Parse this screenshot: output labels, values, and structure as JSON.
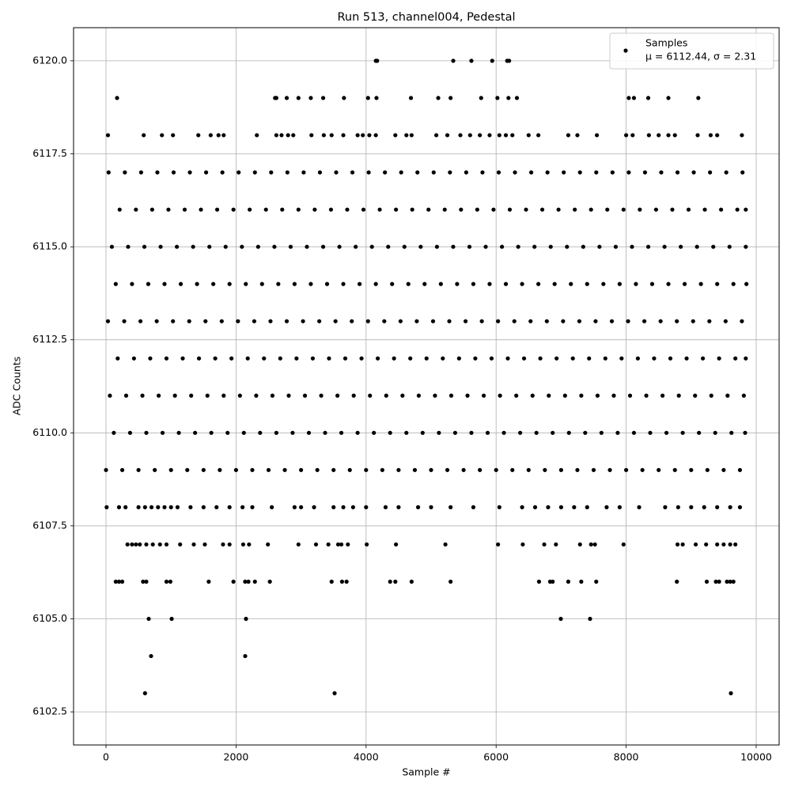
{
  "chart_data": {
    "type": "scatter",
    "title": "Run 513, channel004, Pedestal",
    "x_label": "Sample #",
    "y_label": "ADC Counts",
    "xlim": [
      -499,
      10353
    ],
    "ylim": [
      6101.61,
      6120.89
    ],
    "xticks": [
      0,
      2000,
      4000,
      6000,
      8000,
      10000
    ],
    "yticks": [
      6102.5,
      {
        "value": 6105,
        "label": "6105.0"
      },
      6107.5,
      {
        "value": 6110,
        "label": "6110.0"
      },
      6112.5,
      {
        "value": 6115,
        "label": "6115.0"
      },
      6117.5,
      {
        "value": 6120,
        "label": "6120.0"
      }
    ],
    "grid": true,
    "legend": "upper right",
    "legend_note": "μ = 6112.44, σ = 2.31",
    "series": [
      {
        "name": "Samples",
        "color": "#000000",
        "x": [
          600,
          3516,
          9611,
          693,
          2141,
          657,
          1010,
          2153,
          6995,
          7445,
          4150,
          4170,
          5341,
          5620,
          5940,
          6170,
          6200,
          170,
          2600,
          2620,
          2780,
          2960,
          3150,
          3340,
          3660,
          4030,
          4160,
          4690,
          5110,
          5300,
          5770,
          6020,
          6190,
          6320,
          8040,
          8120,
          8340,
          8650,
          9110,
          150,
          200,
          250,
          570,
          620,
          930,
          990,
          1580,
          1960,
          2140,
          2190,
          2290,
          2520,
          3470,
          3630,
          3700,
          4370,
          4450,
          4700,
          5300,
          6660,
          6830,
          6870,
          7110,
          7310,
          7540,
          8780,
          9240,
          9380,
          9430,
          9550,
          9600,
          9650,
          330,
          400,
          460,
          520,
          620,
          720,
          830,
          930,
          1140,
          1350,
          1520,
          1800,
          1900,
          2110,
          2200,
          2490,
          2960,
          3230,
          3420,
          3570,
          3620,
          3720,
          4010,
          4460,
          5220,
          6030,
          6410,
          6740,
          6920,
          7290,
          7460,
          7520,
          7960,
          8790,
          8870,
          9070,
          9230,
          9400,
          9500,
          9600,
          9680,
          30,
          580,
          860,
          1030,
          1420,
          1610,
          1730,
          1810,
          2320,
          2620,
          2700,
          2800,
          2880,
          3160,
          3350,
          3470,
          3650,
          3870,
          3950,
          4050,
          4150,
          4450,
          4620,
          4700,
          5080,
          5250,
          5450,
          5600,
          5750,
          5900,
          6050,
          6150,
          6250,
          6500,
          6650,
          7110,
          7250,
          7550,
          8000,
          8100,
          8350,
          8500,
          8650,
          8750,
          9100,
          9300,
          9400,
          9780,
          10,
          200,
          300,
          500,
          600,
          700,
          800,
          900,
          1000,
          1100,
          1300,
          1500,
          1700,
          1900,
          2100,
          2250,
          2550,
          2900,
          3000,
          3200,
          3500,
          3650,
          3800,
          4000,
          4300,
          4500,
          4800,
          5000,
          5300,
          5650,
          6050,
          6400,
          6600,
          6800,
          7000,
          7200,
          7400,
          7700,
          7900,
          8200,
          8600,
          8800,
          9000,
          9200,
          9400,
          9600,
          9750,
          0,
          250,
          500,
          750,
          1000,
          1250,
          1500,
          1750,
          2000,
          2250,
          2500,
          2750,
          3000,
          3250,
          3500,
          3750,
          4000,
          4250,
          4500,
          4750,
          5000,
          5250,
          5500,
          5750,
          6000,
          6250,
          6500,
          6750,
          7000,
          7250,
          7500,
          7750,
          8000,
          8250,
          8500,
          8750,
          9000,
          9250,
          9500,
          9750,
          120,
          370,
          620,
          870,
          1120,
          1370,
          1620,
          1870,
          2120,
          2370,
          2620,
          2870,
          3120,
          3370,
          3620,
          3870,
          4120,
          4370,
          4620,
          4870,
          5120,
          5370,
          5620,
          5870,
          6120,
          6370,
          6620,
          6870,
          7120,
          7370,
          7620,
          7870,
          8120,
          8370,
          8620,
          8870,
          9120,
          9370,
          9620,
          9830,
          60,
          310,
          560,
          810,
          1060,
          1310,
          1560,
          1810,
          2060,
          2310,
          2560,
          2810,
          3060,
          3310,
          3560,
          3810,
          4060,
          4310,
          4560,
          4810,
          5060,
          5310,
          5560,
          5810,
          6060,
          6310,
          6560,
          6810,
          7060,
          7310,
          7560,
          7810,
          8060,
          8310,
          8560,
          8810,
          9060,
          9310,
          9560,
          9810,
          180,
          430,
          680,
          930,
          1180,
          1430,
          1680,
          1930,
          2180,
          2430,
          2680,
          2930,
          3180,
          3430,
          3680,
          3930,
          4180,
          4430,
          4680,
          4930,
          5180,
          5430,
          5680,
          5930,
          6180,
          6430,
          6680,
          6930,
          7180,
          7430,
          7680,
          7930,
          8180,
          8430,
          8680,
          8930,
          9180,
          9430,
          9680,
          9840,
          30,
          280,
          530,
          780,
          1030,
          1280,
          1530,
          1780,
          2030,
          2280,
          2530,
          2780,
          3030,
          3280,
          3530,
          3780,
          4030,
          4280,
          4530,
          4780,
          5030,
          5280,
          5530,
          5780,
          6030,
          6280,
          6530,
          6780,
          7030,
          7280,
          7530,
          7780,
          8030,
          8280,
          8530,
          8780,
          9030,
          9280,
          9530,
          9780,
          150,
          400,
          650,
          900,
          1150,
          1400,
          1650,
          1900,
          2150,
          2400,
          2650,
          2900,
          3150,
          3400,
          3650,
          3900,
          4150,
          4400,
          4650,
          4900,
          5150,
          5400,
          5650,
          5900,
          6150,
          6400,
          6650,
          6900,
          7150,
          7400,
          7650,
          7900,
          8150,
          8400,
          8650,
          8900,
          9150,
          9400,
          9650,
          9850,
          90,
          340,
          590,
          840,
          1090,
          1340,
          1590,
          1840,
          2090,
          2340,
          2590,
          2840,
          3090,
          3340,
          3590,
          3840,
          4090,
          4340,
          4590,
          4840,
          5090,
          5340,
          5590,
          5840,
          6090,
          6340,
          6590,
          6840,
          7090,
          7340,
          7590,
          7840,
          8090,
          8340,
          8590,
          8840,
          9090,
          9340,
          9590,
          9840,
          210,
          460,
          710,
          960,
          1210,
          1460,
          1710,
          1960,
          2210,
          2460,
          2710,
          2960,
          3210,
          3460,
          3710,
          3960,
          4210,
          4460,
          4710,
          4960,
          5210,
          5460,
          5710,
          5960,
          6210,
          6460,
          6710,
          6960,
          7210,
          7460,
          7710,
          7960,
          8210,
          8460,
          8710,
          8960,
          9210,
          9460,
          9710,
          9840,
          40,
          290,
          540,
          790,
          1040,
          1290,
          1540,
          1790,
          2040,
          2290,
          2540,
          2790,
          3040,
          3290,
          3540,
          3790,
          4040,
          4290,
          4540,
          4790,
          5040,
          5290,
          5540,
          5790,
          6040,
          6290,
          6540,
          6790,
          7040,
          7290,
          7540,
          7790,
          8040,
          8290,
          8540,
          8790,
          9040,
          9290,
          9540,
          9790
        ],
        "values": [
          6103,
          6103,
          6103,
          6104,
          6104,
          6105,
          6105,
          6105,
          6105,
          6105,
          6120,
          6120,
          6120,
          6120,
          6120,
          6120,
          6120,
          6119,
          6119,
          6119,
          6119,
          6119,
          6119,
          6119,
          6119,
          6119,
          6119,
          6119,
          6119,
          6119,
          6119,
          6119,
          6119,
          6119,
          6119,
          6119,
          6119,
          6119,
          6119,
          6106,
          6106,
          6106,
          6106,
          6106,
          6106,
          6106,
          6106,
          6106,
          6106,
          6106,
          6106,
          6106,
          6106,
          6106,
          6106,
          6106,
          6106,
          6106,
          6106,
          6106,
          6106,
          6106,
          6106,
          6106,
          6106,
          6106,
          6106,
          6106,
          6106,
          6106,
          6106,
          6106,
          6107,
          6107,
          6107,
          6107,
          6107,
          6107,
          6107,
          6107,
          6107,
          6107,
          6107,
          6107,
          6107,
          6107,
          6107,
          6107,
          6107,
          6107,
          6107,
          6107,
          6107,
          6107,
          6107,
          6107,
          6107,
          6107,
          6107,
          6107,
          6107,
          6107,
          6107,
          6107,
          6107,
          6107,
          6107,
          6107,
          6107,
          6107,
          6107,
          6107,
          6107,
          6118,
          6118,
          6118,
          6118,
          6118,
          6118,
          6118,
          6118,
          6118,
          6118,
          6118,
          6118,
          6118,
          6118,
          6118,
          6118,
          6118,
          6118,
          6118,
          6118,
          6118,
          6118,
          6118,
          6118,
          6118,
          6118,
          6118,
          6118,
          6118,
          6118,
          6118,
          6118,
          6118,
          6118,
          6118,
          6118,
          6118,
          6118,
          6118,
          6118,
          6118,
          6118,
          6118,
          6118,
          6118,
          6118,
          6118,
          6118,
          6108,
          6108,
          6108,
          6108,
          6108,
          6108,
          6108,
          6108,
          6108,
          6108,
          6108,
          6108,
          6108,
          6108,
          6108,
          6108,
          6108,
          6108,
          6108,
          6108,
          6108,
          6108,
          6108,
          6108,
          6108,
          6108,
          6108,
          6108,
          6108,
          6108,
          6108,
          6108,
          6108,
          6108,
          6108,
          6108,
          6108,
          6108,
          6108,
          6108,
          6108,
          6108,
          6108,
          6108,
          6108,
          6108,
          6108,
          6109,
          6109,
          6109,
          6109,
          6109,
          6109,
          6109,
          6109,
          6109,
          6109,
          6109,
          6109,
          6109,
          6109,
          6109,
          6109,
          6109,
          6109,
          6109,
          6109,
          6109,
          6109,
          6109,
          6109,
          6109,
          6109,
          6109,
          6109,
          6109,
          6109,
          6109,
          6109,
          6109,
          6109,
          6109,
          6109,
          6109,
          6109,
          6109,
          6109,
          6110,
          6110,
          6110,
          6110,
          6110,
          6110,
          6110,
          6110,
          6110,
          6110,
          6110,
          6110,
          6110,
          6110,
          6110,
          6110,
          6110,
          6110,
          6110,
          6110,
          6110,
          6110,
          6110,
          6110,
          6110,
          6110,
          6110,
          6110,
          6110,
          6110,
          6110,
          6110,
          6110,
          6110,
          6110,
          6110,
          6110,
          6110,
          6110,
          6110,
          6111,
          6111,
          6111,
          6111,
          6111,
          6111,
          6111,
          6111,
          6111,
          6111,
          6111,
          6111,
          6111,
          6111,
          6111,
          6111,
          6111,
          6111,
          6111,
          6111,
          6111,
          6111,
          6111,
          6111,
          6111,
          6111,
          6111,
          6111,
          6111,
          6111,
          6111,
          6111,
          6111,
          6111,
          6111,
          6111,
          6111,
          6111,
          6111,
          6111,
          6112,
          6112,
          6112,
          6112,
          6112,
          6112,
          6112,
          6112,
          6112,
          6112,
          6112,
          6112,
          6112,
          6112,
          6112,
          6112,
          6112,
          6112,
          6112,
          6112,
          6112,
          6112,
          6112,
          6112,
          6112,
          6112,
          6112,
          6112,
          6112,
          6112,
          6112,
          6112,
          6112,
          6112,
          6112,
          6112,
          6112,
          6112,
          6112,
          6112,
          6113,
          6113,
          6113,
          6113,
          6113,
          6113,
          6113,
          6113,
          6113,
          6113,
          6113,
          6113,
          6113,
          6113,
          6113,
          6113,
          6113,
          6113,
          6113,
          6113,
          6113,
          6113,
          6113,
          6113,
          6113,
          6113,
          6113,
          6113,
          6113,
          6113,
          6113,
          6113,
          6113,
          6113,
          6113,
          6113,
          6113,
          6113,
          6113,
          6113,
          6114,
          6114,
          6114,
          6114,
          6114,
          6114,
          6114,
          6114,
          6114,
          6114,
          6114,
          6114,
          6114,
          6114,
          6114,
          6114,
          6114,
          6114,
          6114,
          6114,
          6114,
          6114,
          6114,
          6114,
          6114,
          6114,
          6114,
          6114,
          6114,
          6114,
          6114,
          6114,
          6114,
          6114,
          6114,
          6114,
          6114,
          6114,
          6114,
          6114,
          6115,
          6115,
          6115,
          6115,
          6115,
          6115,
          6115,
          6115,
          6115,
          6115,
          6115,
          6115,
          6115,
          6115,
          6115,
          6115,
          6115,
          6115,
          6115,
          6115,
          6115,
          6115,
          6115,
          6115,
          6115,
          6115,
          6115,
          6115,
          6115,
          6115,
          6115,
          6115,
          6115,
          6115,
          6115,
          6115,
          6115,
          6115,
          6115,
          6115,
          6116,
          6116,
          6116,
          6116,
          6116,
          6116,
          6116,
          6116,
          6116,
          6116,
          6116,
          6116,
          6116,
          6116,
          6116,
          6116,
          6116,
          6116,
          6116,
          6116,
          6116,
          6116,
          6116,
          6116,
          6116,
          6116,
          6116,
          6116,
          6116,
          6116,
          6116,
          6116,
          6116,
          6116,
          6116,
          6116,
          6116,
          6116,
          6116,
          6116,
          6117,
          6117,
          6117,
          6117,
          6117,
          6117,
          6117,
          6117,
          6117,
          6117,
          6117,
          6117,
          6117,
          6117,
          6117,
          6117,
          6117,
          6117,
          6117,
          6117,
          6117,
          6117,
          6117,
          6117,
          6117,
          6117,
          6117,
          6117,
          6117,
          6117,
          6117,
          6117,
          6117,
          6117,
          6117,
          6117,
          6117,
          6117,
          6117,
          6117
        ]
      }
    ]
  }
}
